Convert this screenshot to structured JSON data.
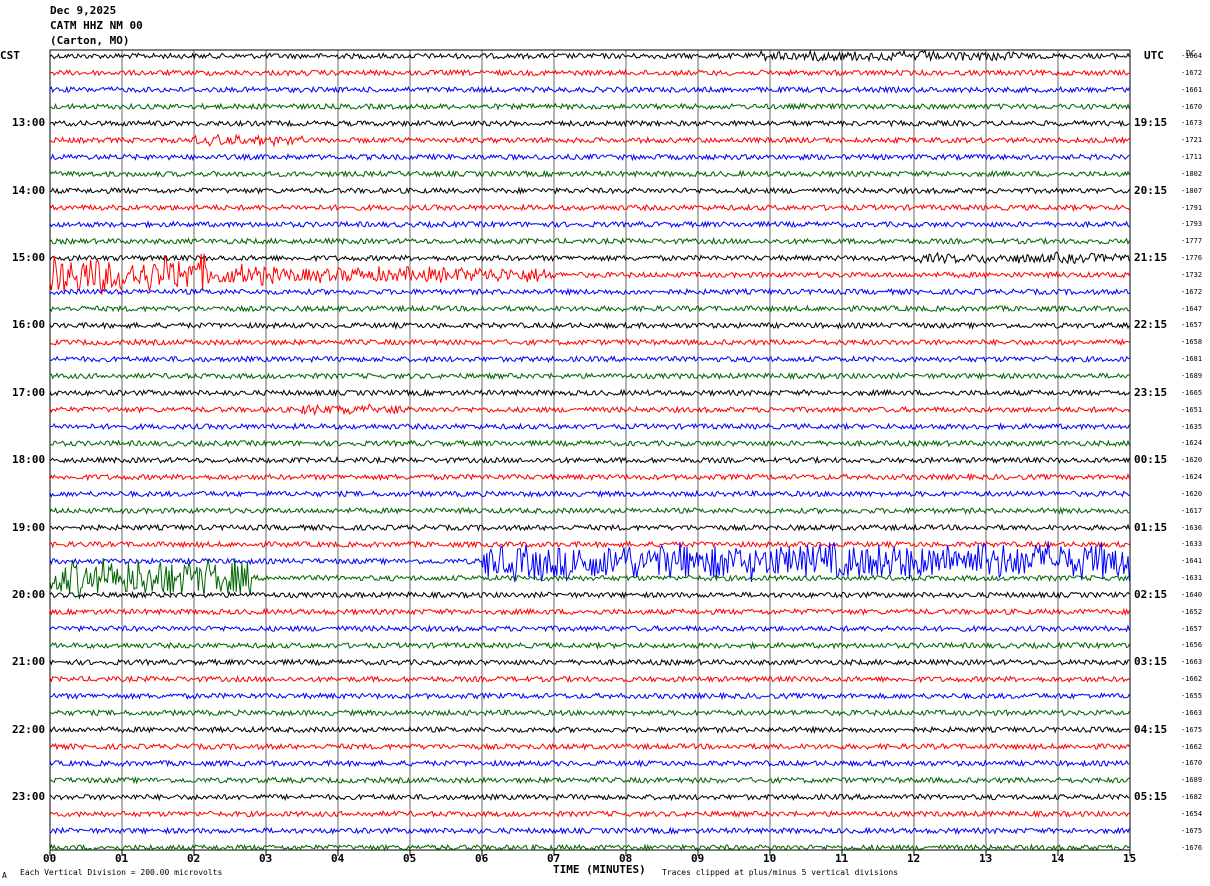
{
  "header": {
    "date": "Dec 9,2025",
    "station": "CATM HHZ NM 00",
    "location": "(Carton, MO)"
  },
  "left_tz": "CST",
  "right_tz": "UTC",
  "dc_header": "DC",
  "left_hours": [
    "13:00",
    "14:00",
    "15:00",
    "16:00",
    "17:00",
    "18:00",
    "19:00",
    "20:00",
    "21:00",
    "22:00",
    "23:00"
  ],
  "right_hours": [
    "19:15",
    "20:15",
    "21:15",
    "22:15",
    "23:15",
    "00:15",
    "01:15",
    "02:15",
    "03:15",
    "04:15",
    "05:15"
  ],
  "dc_values": [
    "-1664",
    "-1672",
    "-1661",
    "-1670",
    "-1673",
    "-1721",
    "-1711",
    "-1802",
    "-1807",
    "-1791",
    "-1793",
    "-1777",
    "-1776",
    "-1732",
    "-1672",
    "-1647",
    "-1657",
    "-1658",
    "-1681",
    "-1689",
    "-1665",
    "-1651",
    "-1635",
    "-1624",
    "-1620",
    "-1624",
    "-1620",
    "-1617",
    "-1636",
    "-1633",
    "-1641",
    "-1631",
    "-1640",
    "-1652",
    "-1657",
    "-1656",
    "-1663",
    "-1662",
    "-1655",
    "-1663",
    "-1675",
    "-1662",
    "-1670",
    "-1689",
    "-1682",
    "-1654",
    "-1675",
    "-1676"
  ],
  "x_ticks": [
    "00",
    "01",
    "02",
    "03",
    "04",
    "05",
    "06",
    "07",
    "08",
    "09",
    "10",
    "11",
    "12",
    "13",
    "14",
    "15"
  ],
  "x_title": "TIME (MINUTES)",
  "footer_left": "Each Vertical Division =  200.00 microvolts",
  "footer_right": "Traces clipped at plus/minus 5 vertical divisions",
  "footer_mark": "A",
  "colors": {
    "trace_cycle": [
      "#000000",
      "#ff0000",
      "#0000ff",
      "#006400"
    ],
    "grid": "#000000"
  },
  "chart_data": {
    "type": "line",
    "x_range": [
      0,
      15
    ],
    "trace_count": 48,
    "events": [
      {
        "trace": 13,
        "start_min": 0,
        "end_min": 3,
        "strength": "high"
      },
      {
        "trace": 13,
        "start_min": 3,
        "end_min": 7,
        "strength": "medium"
      },
      {
        "trace": 30,
        "start_min": 6,
        "end_min": 15,
        "strength": "high"
      },
      {
        "trace": 31,
        "start_min": 0,
        "end_min": 2.8,
        "strength": "high"
      },
      {
        "trace": 0,
        "start_min": 9.8,
        "end_min": 13.5,
        "strength": "low"
      },
      {
        "trace": 12,
        "start_min": 12,
        "end_min": 15,
        "strength": "low"
      },
      {
        "trace": 21,
        "start_min": 3.5,
        "end_min": 5,
        "strength": "low"
      },
      {
        "trace": 5,
        "start_min": 2,
        "end_min": 3.5,
        "strength": "low"
      }
    ]
  }
}
